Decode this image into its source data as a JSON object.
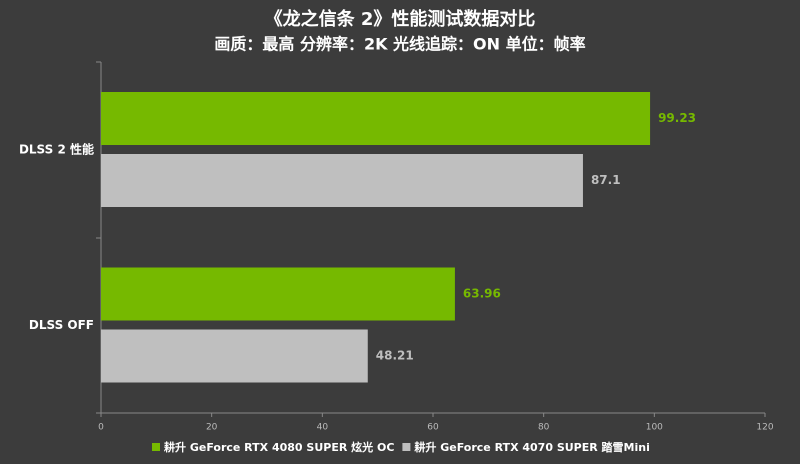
{
  "chart_data": {
    "type": "hbar",
    "title": "《龙之信条 2》性能测试数据对比",
    "subtitle": "画质：最高 分辨率：2K 光线追踪：ON 单位：帧率",
    "categories": [
      "DLSS 2 性能",
      "DLSS OFF"
    ],
    "series": [
      {
        "name": "耕升 GeForce RTX 4080 SUPER 炫光 OC",
        "color": "#76b900",
        "values": [
          99.23,
          63.96
        ]
      },
      {
        "name": "耕升 GeForce RTX 4070 SUPER 踏雪Mini",
        "color": "#bfbfbf",
        "values": [
          87.1,
          48.21
        ]
      }
    ],
    "xlim": [
      0,
      120
    ],
    "xticks": [
      0,
      20,
      40,
      60,
      80,
      100,
      120
    ]
  }
}
